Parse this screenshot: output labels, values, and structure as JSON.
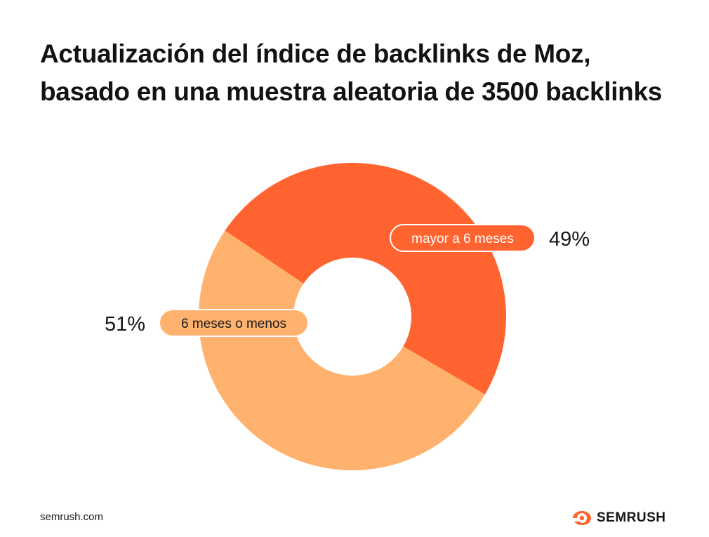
{
  "title": "Actualización del índice de backlinks de Moz, basado en una muestra aleatoria de 3500 backlinks",
  "footer": {
    "site": "semrush.com",
    "brand": "SEMRUSH"
  },
  "colors": {
    "older": "#ff6430",
    "recent": "#ffb26e",
    "text": "#161616",
    "logo_accent": "#ff642d"
  },
  "chart_data": {
    "type": "pie",
    "hole": true,
    "slices": [
      {
        "label": "mayor a 6 meses",
        "value": 49,
        "display": "49%",
        "color": "#ff6430"
      },
      {
        "label": "6 meses o menos",
        "value": 51,
        "display": "51%",
        "color": "#ffb26e"
      }
    ]
  }
}
